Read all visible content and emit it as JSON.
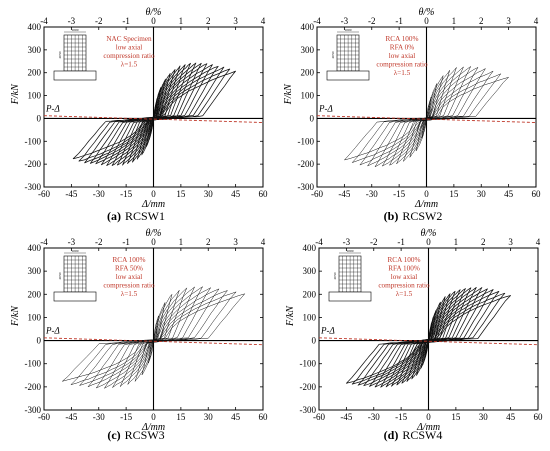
{
  "figure_title": "",
  "chart_data": [
    {
      "type": "line",
      "panel_letter": "(a)",
      "specimen": "RCSW1",
      "xlabel": "Δ/mm",
      "ylabel": "F/kN",
      "top_xlabel": "θ/%",
      "xlim": [
        -60,
        60
      ],
      "ylim": [
        -300,
        400
      ],
      "top_xlim": [
        -4,
        4
      ],
      "x_ticks": [
        "-60",
        "-45",
        "-30",
        "-15",
        "0",
        "15",
        "30",
        "45",
        "60"
      ],
      "y_ticks": [
        "400",
        "300",
        "200",
        "100",
        "0",
        "-100",
        "-200",
        "-300"
      ],
      "top_ticks": [
        "-4",
        "-3",
        "-2",
        "-1",
        "0",
        "1",
        "2",
        "3",
        "4"
      ],
      "info_lines": [
        "NAC Specimen",
        "low axial",
        "compression ratio",
        "λ=1.5"
      ],
      "pdelta_label": "P-Δ",
      "pdelta_line": {
        "x": [
          -60,
          60
        ],
        "y": [
          12,
          -18
        ]
      },
      "envelope_positive": {
        "x": [
          0,
          3,
          6,
          10,
          15,
          20,
          25,
          30,
          35,
          40,
          45
        ],
        "y": [
          0,
          120,
          170,
          210,
          235,
          245,
          248,
          245,
          235,
          225,
          210
        ]
      },
      "envelope_negative": {
        "x": [
          0,
          -3,
          -6,
          -10,
          -15,
          -20,
          -25,
          -30,
          -35,
          -40,
          -44
        ],
        "y": [
          0,
          -110,
          -160,
          -190,
          -205,
          -210,
          -210,
          -205,
          -200,
          -195,
          -180
        ]
      },
      "hysteresis_style": "dense",
      "grid": false
    },
    {
      "type": "line",
      "panel_letter": "(b)",
      "specimen": "RCSW2",
      "xlabel": "Δ/mm",
      "ylabel": "F/kN",
      "top_xlabel": "θ/%",
      "xlim": [
        -60,
        60
      ],
      "ylim": [
        -300,
        400
      ],
      "top_xlim": [
        -4,
        4
      ],
      "x_ticks": [
        "-60",
        "-45",
        "-30",
        "-15",
        "0",
        "15",
        "30",
        "45",
        "60"
      ],
      "y_ticks": [
        "400",
        "300",
        "200",
        "100",
        "0",
        "-100",
        "-200",
        "-300"
      ],
      "top_ticks": [
        "-4",
        "-3",
        "-2",
        "-1",
        "0",
        "1",
        "2",
        "3",
        "4"
      ],
      "info_lines": [
        "RCA 100%",
        "RFA 0%",
        "low axial",
        "compression ratio",
        "λ=1.5"
      ],
      "pdelta_label": "P-Δ",
      "pdelta_line": {
        "x": [
          -60,
          60
        ],
        "y": [
          12,
          -18
        ]
      },
      "envelope_positive": {
        "x": [
          0,
          3,
          6,
          10,
          15,
          20,
          25,
          30,
          35,
          40,
          45
        ],
        "y": [
          0,
          110,
          160,
          200,
          225,
          230,
          232,
          228,
          215,
          200,
          185
        ]
      },
      "envelope_negative": {
        "x": [
          0,
          -3,
          -6,
          -10,
          -15,
          -20,
          -25,
          -30,
          -35,
          -40,
          -45
        ],
        "y": [
          0,
          -100,
          -150,
          -180,
          -200,
          -210,
          -215,
          -215,
          -210,
          -200,
          -185
        ]
      },
      "hysteresis_style": "sparse",
      "grid": false
    },
    {
      "type": "line",
      "panel_letter": "(c)",
      "specimen": "RCSW3",
      "xlabel": "Δ/mm",
      "ylabel": "F/kN",
      "top_xlabel": "θ/%",
      "xlim": [
        -60,
        60
      ],
      "ylim": [
        -300,
        400
      ],
      "top_xlim": [
        -4,
        4
      ],
      "x_ticks": [
        "-60",
        "-45",
        "-30",
        "-15",
        "0",
        "15",
        "30",
        "45",
        "60"
      ],
      "y_ticks": [
        "400",
        "300",
        "200",
        "100",
        "0",
        "-100",
        "-200",
        "-300"
      ],
      "top_ticks": [
        "-4",
        "-3",
        "-2",
        "-1",
        "0",
        "1",
        "2",
        "3",
        "4"
      ],
      "info_lines": [
        "RCA 100%",
        "RFA 50%",
        "low axial",
        "compression ratio",
        "λ=1.5"
      ],
      "pdelta_label": "P-Δ",
      "pdelta_line": {
        "x": [
          -60,
          60
        ],
        "y": [
          12,
          -18
        ]
      },
      "envelope_positive": {
        "x": [
          0,
          3,
          6,
          10,
          15,
          20,
          25,
          30,
          35,
          40,
          45,
          50
        ],
        "y": [
          0,
          115,
          165,
          205,
          225,
          235,
          238,
          235,
          230,
          222,
          215,
          205
        ]
      },
      "envelope_negative": {
        "x": [
          0,
          -3,
          -6,
          -10,
          -15,
          -20,
          -25,
          -30,
          -35,
          -40,
          -45,
          -50
        ],
        "y": [
          0,
          -105,
          -150,
          -180,
          -195,
          -205,
          -210,
          -210,
          -205,
          -200,
          -195,
          -180
        ]
      },
      "hysteresis_style": "sparse",
      "grid": false
    },
    {
      "type": "line",
      "panel_letter": "(d)",
      "specimen": "RCSW4",
      "xlabel": "Δ/mm",
      "ylabel": "F/kN",
      "top_xlabel": "θ/%",
      "xlim": [
        -60,
        60
      ],
      "ylim": [
        -300,
        400
      ],
      "top_xlim": [
        -4,
        4
      ],
      "x_ticks": [
        "-60",
        "-45",
        "-30",
        "-15",
        "0",
        "15",
        "30",
        "45",
        "60"
      ],
      "y_ticks": [
        "400",
        "300",
        "200",
        "100",
        "0",
        "-100",
        "-200",
        "-300"
      ],
      "top_ticks": [
        "-4",
        "-3",
        "-2",
        "-1",
        "0",
        "1",
        "2",
        "3",
        "4"
      ],
      "info_lines": [
        "RCA 100%",
        "RFA 100%",
        "low axial",
        "compression ratio",
        "λ=1.5"
      ],
      "pdelta_label": "P-Δ",
      "pdelta_line": {
        "x": [
          -60,
          60
        ],
        "y": [
          12,
          -18
        ]
      },
      "envelope_positive": {
        "x": [
          0,
          3,
          6,
          10,
          15,
          20,
          25,
          30,
          35,
          40,
          45
        ],
        "y": [
          0,
          115,
          165,
          200,
          220,
          230,
          235,
          232,
          225,
          215,
          200
        ]
      },
      "envelope_negative": {
        "x": [
          0,
          -3,
          -6,
          -10,
          -15,
          -20,
          -25,
          -30,
          -35,
          -40,
          -45
        ],
        "y": [
          0,
          -105,
          -150,
          -175,
          -190,
          -200,
          -205,
          -205,
          -200,
          -195,
          -190
        ]
      },
      "hysteresis_style": "dense",
      "grid": false
    }
  ],
  "colors": {
    "curve": "#111111",
    "pdelta": "#c0392b",
    "info_text": "#c0392b",
    "axis": "#000000"
  }
}
